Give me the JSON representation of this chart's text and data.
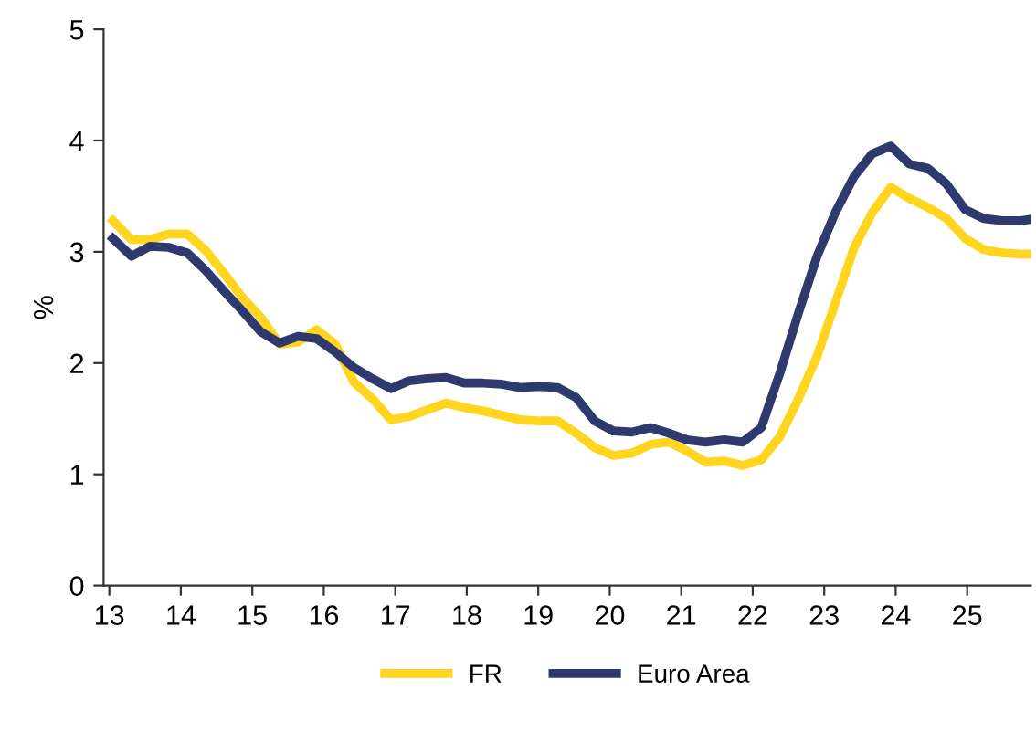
{
  "chart_data": {
    "type": "line",
    "ylabel": "%",
    "xlim": [
      12.92,
      25.89
    ],
    "xticks": [
      13,
      14,
      15,
      16,
      17,
      18,
      19,
      20,
      21,
      22,
      23,
      24,
      25
    ],
    "ylim": [
      0,
      5
    ],
    "yticks": [
      0,
      1,
      2,
      3,
      4,
      5
    ],
    "grid": false,
    "legend": "bottom",
    "marker": "none",
    "line_style": "solid",
    "x": [
      13.05,
      13.31,
      13.57,
      13.83,
      14.09,
      14.35,
      14.6,
      14.86,
      15.12,
      15.38,
      15.64,
      15.9,
      16.16,
      16.42,
      16.68,
      16.94,
      17.19,
      17.45,
      17.71,
      17.97,
      18.23,
      18.49,
      18.75,
      19.01,
      19.27,
      19.53,
      19.79,
      20.05,
      20.31,
      20.57,
      20.83,
      21.08,
      21.34,
      21.6,
      21.86,
      22.12,
      22.38,
      22.64,
      22.9,
      23.16,
      23.42,
      23.67,
      23.93,
      24.19,
      24.45,
      24.71,
      24.97,
      25.23,
      25.49,
      25.75,
      25.87
    ],
    "series": [
      {
        "name": "FR",
        "color": "#ffd520",
        "values": [
          3.28,
          3.11,
          3.11,
          3.16,
          3.16,
          3.01,
          2.81,
          2.59,
          2.41,
          2.17,
          2.19,
          2.3,
          2.17,
          1.83,
          1.68,
          1.49,
          1.52,
          1.58,
          1.64,
          1.6,
          1.57,
          1.53,
          1.49,
          1.48,
          1.48,
          1.37,
          1.24,
          1.17,
          1.19,
          1.27,
          1.29,
          1.21,
          1.11,
          1.12,
          1.08,
          1.13,
          1.34,
          1.68,
          2.06,
          2.55,
          3.04,
          3.35,
          3.58,
          3.48,
          3.4,
          3.3,
          3.12,
          3.02,
          2.99,
          2.98,
          2.98
        ]
      },
      {
        "name": "Euro Area",
        "color": "#2e3a6e",
        "values": [
          3.12,
          2.96,
          3.05,
          3.04,
          2.99,
          2.83,
          2.65,
          2.47,
          2.28,
          2.18,
          2.24,
          2.22,
          2.1,
          1.96,
          1.86,
          1.77,
          1.84,
          1.86,
          1.87,
          1.82,
          1.82,
          1.81,
          1.78,
          1.79,
          1.78,
          1.69,
          1.48,
          1.39,
          1.38,
          1.42,
          1.37,
          1.31,
          1.29,
          1.31,
          1.29,
          1.42,
          1.91,
          2.45,
          2.96,
          3.36,
          3.68,
          3.88,
          3.95,
          3.79,
          3.75,
          3.61,
          3.38,
          3.3,
          3.28,
          3.28,
          3.29
        ]
      }
    ]
  }
}
